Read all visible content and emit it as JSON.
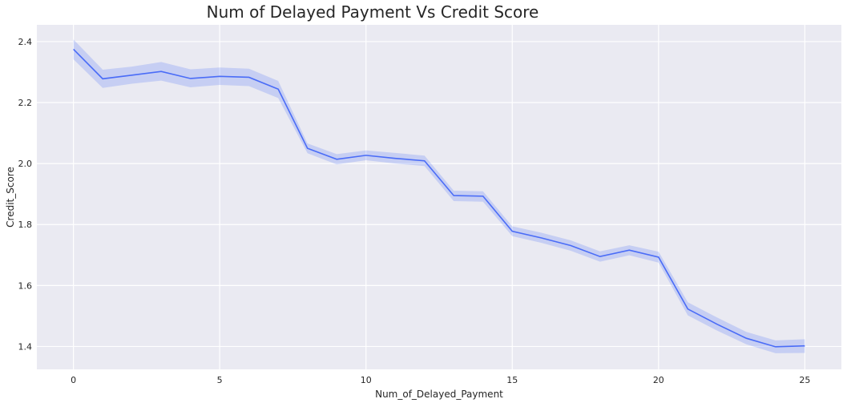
{
  "chart_data": {
    "type": "line",
    "title": "Num of Delayed Payment Vs Credit Score",
    "xlabel": "Num_of_Delayed_Payment",
    "ylabel": "Credit_Score",
    "xlim": [
      -1.25,
      26.25
    ],
    "ylim": [
      1.325,
      2.455
    ],
    "xticks": [
      0,
      5,
      10,
      15,
      20,
      25
    ],
    "yticks": [
      1.4,
      1.6,
      1.8,
      2.0,
      2.2,
      2.4
    ],
    "xtick_labels": [
      "0",
      "5",
      "10",
      "15",
      "20",
      "25"
    ],
    "ytick_labels": [
      "1.4",
      "1.6",
      "1.8",
      "2.0",
      "2.2",
      "2.4"
    ],
    "grid": true,
    "background": "#eaeaf2",
    "line_color": "#4a6cf7",
    "band_color": "#4a6cf7",
    "series": [
      {
        "x": [
          0,
          1,
          2,
          3,
          4,
          5,
          6,
          7,
          8,
          9,
          10,
          11,
          12,
          13,
          14,
          15,
          16,
          17,
          18,
          19,
          20,
          21,
          22,
          23,
          24,
          25
        ],
        "y": [
          2.375,
          2.278,
          2.29,
          2.302,
          2.279,
          2.286,
          2.283,
          2.244,
          2.05,
          2.014,
          2.027,
          2.017,
          2.009,
          1.895,
          1.893,
          1.778,
          1.756,
          1.731,
          1.695,
          1.716,
          1.693,
          1.523,
          1.473,
          1.427,
          1.399,
          1.402
        ],
        "lower": [
          2.342,
          2.248,
          2.262,
          2.272,
          2.25,
          2.258,
          2.254,
          2.215,
          2.034,
          1.997,
          2.011,
          2.0,
          1.992,
          1.877,
          1.875,
          1.762,
          1.74,
          1.714,
          1.678,
          1.699,
          1.675,
          1.502,
          1.452,
          1.407,
          1.378,
          1.379
        ],
        "upper": [
          2.407,
          2.308,
          2.318,
          2.333,
          2.309,
          2.315,
          2.311,
          2.271,
          2.066,
          2.031,
          2.043,
          2.035,
          2.026,
          1.911,
          1.909,
          1.794,
          1.773,
          1.748,
          1.712,
          1.732,
          1.711,
          1.545,
          1.495,
          1.448,
          1.42,
          1.424
        ]
      }
    ]
  }
}
